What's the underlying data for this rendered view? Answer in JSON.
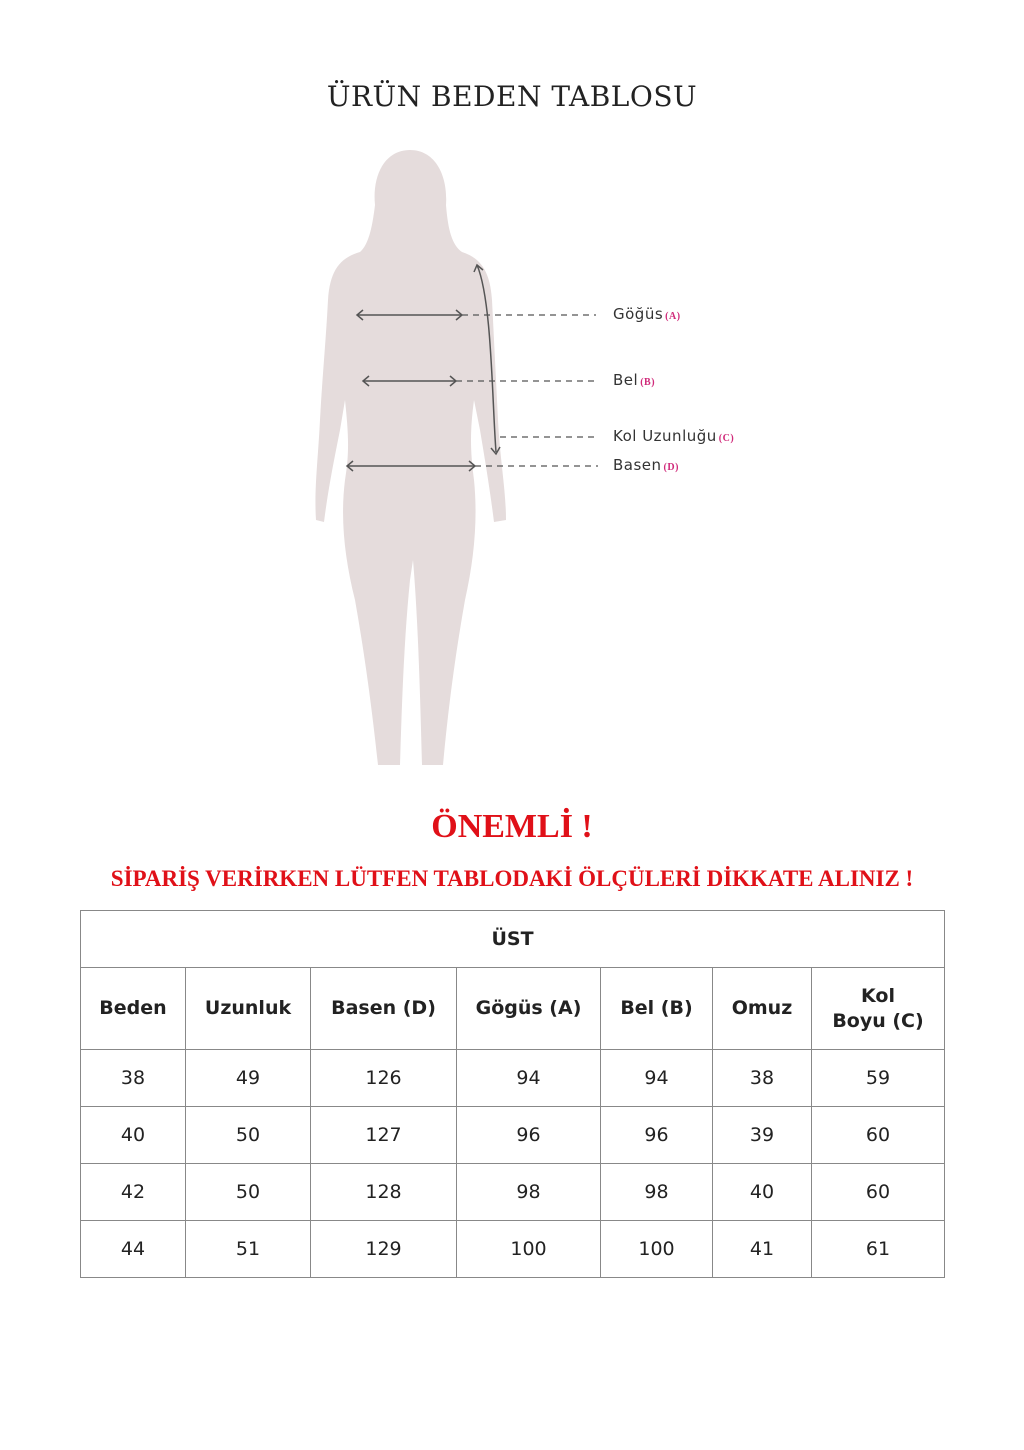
{
  "title": "ÜRÜN BEDEN TABLOSU",
  "figure_labels": [
    {
      "name": "Göğüs",
      "code": "(A)"
    },
    {
      "name": "Bel",
      "code": "(B)"
    },
    {
      "name": "Kol Uzunluğu",
      "code": "(C)"
    },
    {
      "name": "Basen",
      "code": "(D)"
    }
  ],
  "important": "ÖNEMLİ !",
  "warning": "SİPARİŞ VERİRKEN LÜTFEN TABLODAKİ ÖLÇÜLERİ DİKKATE ALINIZ !",
  "table": {
    "caption": "ÜST",
    "headers": [
      "Beden",
      "Uzunluk",
      "Basen (D)",
      "Gögüs (A)",
      "Bel (B)",
      "Omuz",
      "Kol Boyu (C)"
    ],
    "rows": [
      [
        "38",
        "49",
        "126",
        "94",
        "94",
        "38",
        "59"
      ],
      [
        "40",
        "50",
        "127",
        "96",
        "96",
        "39",
        "60"
      ],
      [
        "42",
        "50",
        "128",
        "98",
        "98",
        "40",
        "60"
      ],
      [
        "44",
        "51",
        "129",
        "100",
        "100",
        "41",
        "61"
      ]
    ]
  },
  "colors": {
    "silhouette": "#e5dcdc",
    "alert": "#e01018",
    "code": "#d02a7a"
  }
}
